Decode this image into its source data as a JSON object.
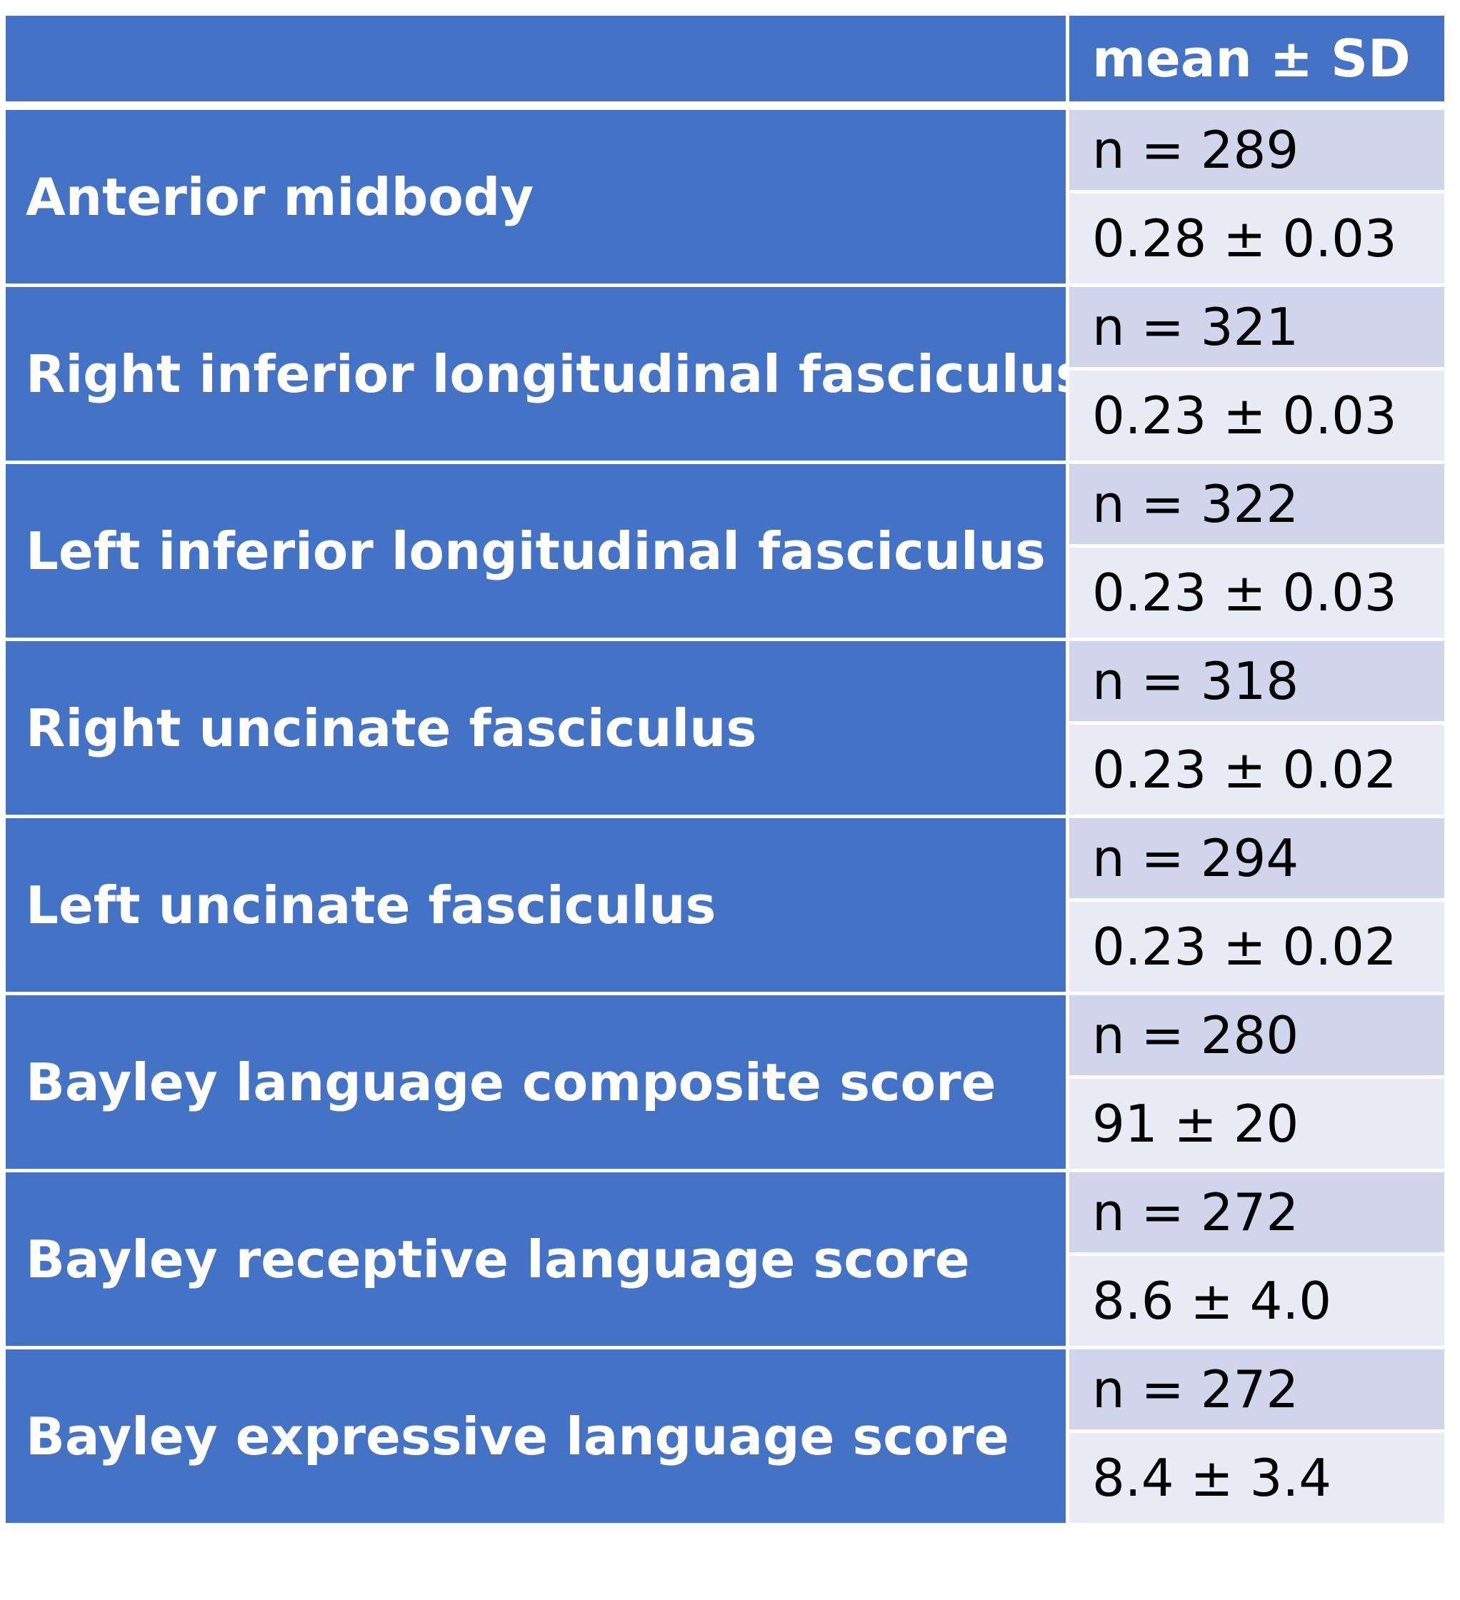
{
  "header": {
    "label": "",
    "value": "mean ± SD"
  },
  "rows": [
    {
      "name": "Anterior midbody",
      "n": "n = 289",
      "stat": "0.28 ± 0.03"
    },
    {
      "name": "Right inferior longitudinal fasciculus",
      "n": "n = 321",
      "stat": "0.23 ± 0.03"
    },
    {
      "name": "Left inferior longitudinal fasciculus",
      "n": "n = 322",
      "stat": "0.23 ± 0.03"
    },
    {
      "name": "Right uncinate fasciculus",
      "n": "n = 318",
      "stat": "0.23 ± 0.02"
    },
    {
      "name": "Left uncinate fasciculus",
      "n": "n = 294",
      "stat": "0.23 ± 0.02"
    },
    {
      "name": "Bayley language composite score",
      "n": "n = 280",
      "stat": "91 ± 20"
    },
    {
      "name": "Bayley receptive language score",
      "n": "n = 272",
      "stat": "8.6 ± 4.0"
    },
    {
      "name": "Bayley expressive language score",
      "n": "n = 272",
      "stat": "8.4 ± 3.4"
    }
  ],
  "colors": {
    "header_bg": "#4472c4",
    "label_bg": "#4472c4",
    "n_row_bg": "#cfd5ea",
    "stat_row_bg": "#e9ebf5"
  }
}
